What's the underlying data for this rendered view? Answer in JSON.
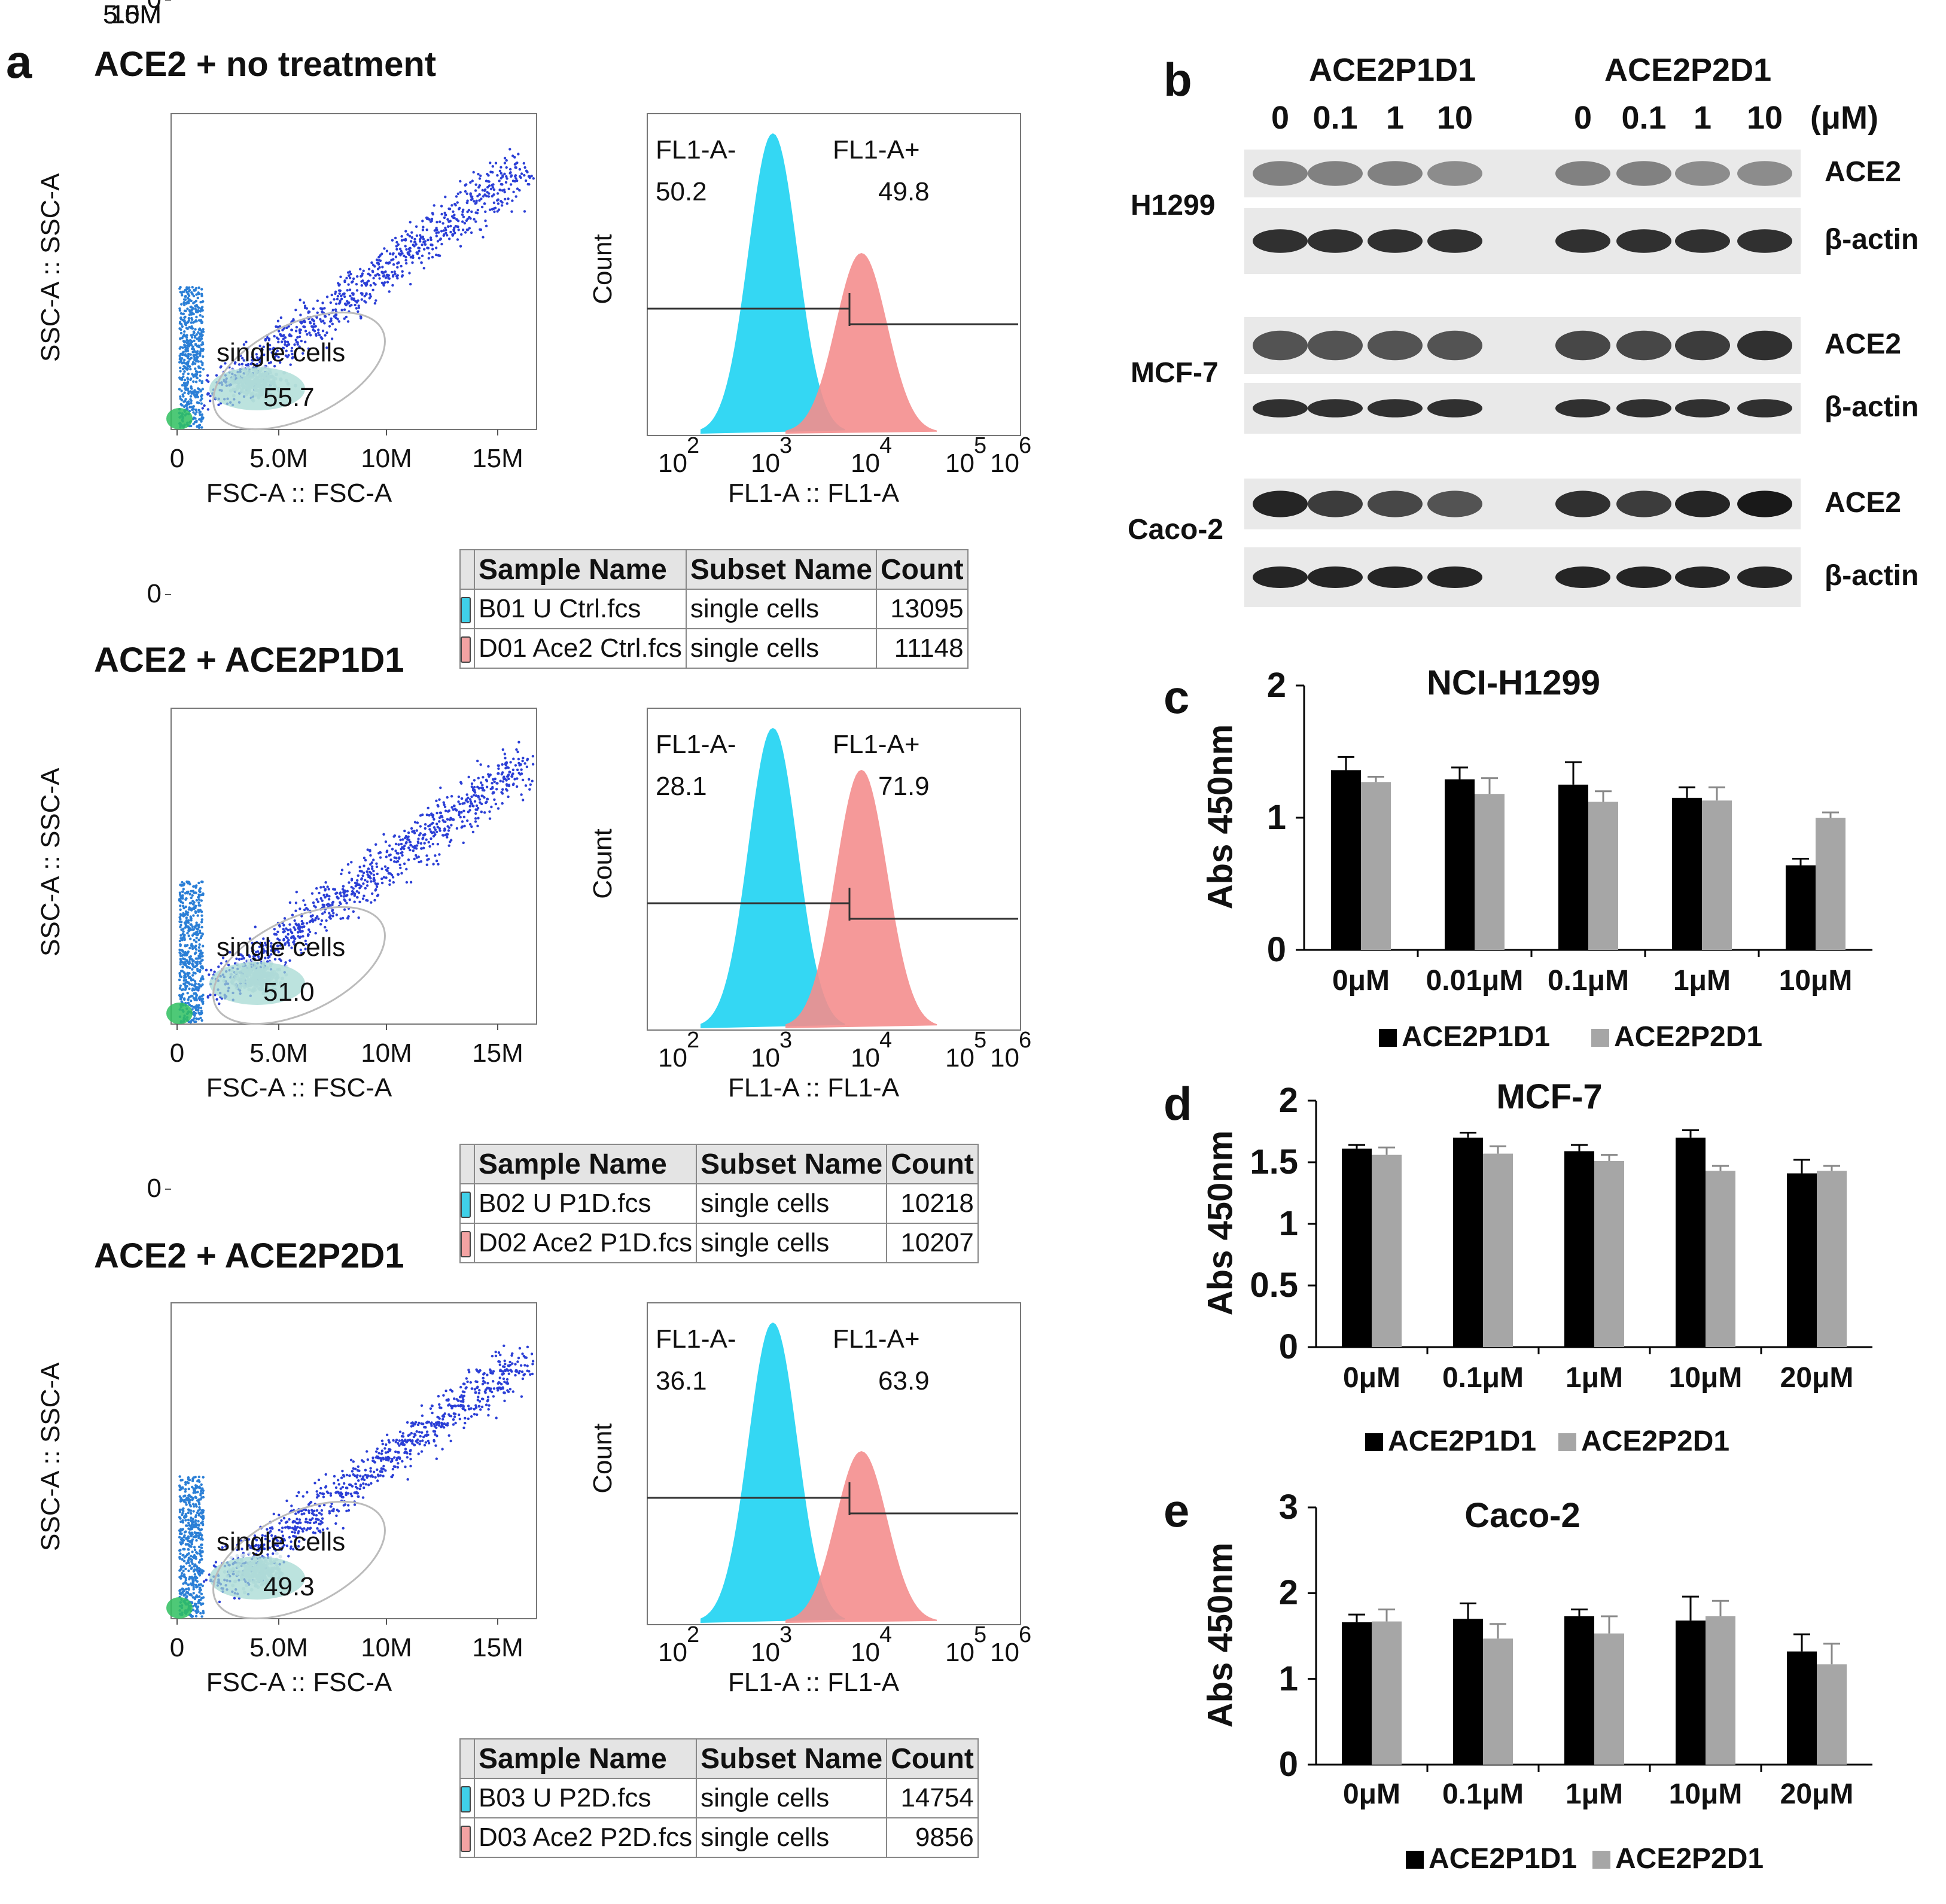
{
  "colors": {
    "histogram_neg": "#1fd3f2",
    "histogram_pos": "#f48e8e",
    "bar_p1d1": "#000000",
    "bar_p2d1": "#a6a6a6"
  },
  "panel_a": {
    "label": "a",
    "flow_axes": {
      "scatter_x_label": "FSC-A :: FSC-A",
      "scatter_y_label": "SSC-A :: SSC-A",
      "scatter_ticks": [
        "0",
        "5.0M",
        "10M",
        "15M"
      ],
      "hist_x_label": "FL1-A :: FL1-A",
      "hist_y_label": "Count",
      "hist_gate_neg": "FL1-A-",
      "hist_gate_pos": "FL1-A+",
      "gate_name": "single cells"
    },
    "legend_headers": [
      "Sample Name",
      "Subset Name",
      "Count"
    ],
    "samples": [
      {
        "title": "ACE2 + no treatment",
        "gate_value": "55.7",
        "neg_pct": "50.2",
        "pos_pct": "49.8",
        "rows": [
          {
            "sample": "B01 U Ctrl.fcs",
            "subset": "single cells",
            "count": "13095"
          },
          {
            "sample": "D01 Ace2 Ctrl.fcs",
            "subset": "single cells",
            "count": "11148"
          }
        ]
      },
      {
        "title": "ACE2 + ACE2P1D1",
        "gate_value": "51.0",
        "neg_pct": "28.1",
        "pos_pct": "71.9",
        "rows": [
          {
            "sample": "B02 U P1D.fcs",
            "subset": "single cells",
            "count": "10218"
          },
          {
            "sample": "D02 Ace2 P1D.fcs",
            "subset": "single cells",
            "count": "10207"
          }
        ]
      },
      {
        "title": "ACE2 + ACE2P2D1",
        "gate_value": "49.3",
        "neg_pct": "36.1",
        "pos_pct": "63.9",
        "rows": [
          {
            "sample": "B03 U P2D.fcs",
            "subset": "single cells",
            "count": "14754"
          },
          {
            "sample": "D03 Ace2 P2D.fcs",
            "subset": "single cells",
            "count": "9856"
          }
        ]
      }
    ]
  },
  "panel_b": {
    "label": "b",
    "groups": [
      "ACE2P1D1",
      "ACE2P2D1"
    ],
    "concentrations": [
      "0",
      "0.1",
      "1",
      "10",
      "0",
      "0.1",
      "1",
      "10"
    ],
    "unit": "(μM)",
    "cell_lines": [
      {
        "name": "H1299",
        "ace2_intensity": [
          0.55,
          0.55,
          0.55,
          0.5,
          0.55,
          0.55,
          0.5,
          0.5
        ],
        "actin_intensity": [
          0.9,
          0.9,
          0.9,
          0.9,
          0.9,
          0.9,
          0.9,
          0.9
        ]
      },
      {
        "name": "MCF-7",
        "ace2_intensity": [
          0.75,
          0.75,
          0.75,
          0.75,
          0.8,
          0.8,
          0.85,
          0.9
        ],
        "actin_intensity": [
          0.9,
          0.9,
          0.9,
          0.9,
          0.9,
          0.9,
          0.9,
          0.9
        ]
      },
      {
        "name": "Caco-2",
        "ace2_intensity": [
          0.95,
          0.85,
          0.8,
          0.75,
          0.9,
          0.85,
          0.95,
          1.0
        ],
        "actin_intensity": [
          0.95,
          0.95,
          0.95,
          0.95,
          0.95,
          0.95,
          0.95,
          0.95
        ]
      }
    ],
    "row_labels": {
      "target": "ACE2",
      "control": "β-actin"
    }
  },
  "chart_data": [
    {
      "panel": "c",
      "type": "bar",
      "title": "NCI-H1299",
      "ylabel": "Abs 450nm",
      "ylim": [
        0,
        2
      ],
      "yticks": [
        "0",
        "1",
        "2"
      ],
      "categories": [
        "0μM",
        "0.01μM",
        "0.1μM",
        "1μM",
        "10μM"
      ],
      "series": [
        {
          "name": "ACE2P1D1",
          "values": [
            1.36,
            1.29,
            1.25,
            1.15,
            0.64
          ],
          "errors": [
            0.1,
            0.09,
            0.17,
            0.08,
            0.05
          ]
        },
        {
          "name": "ACE2P2D1",
          "values": [
            1.27,
            1.18,
            1.12,
            1.13,
            1.0
          ],
          "errors": [
            0.04,
            0.12,
            0.08,
            0.1,
            0.04
          ]
        }
      ]
    },
    {
      "panel": "d",
      "type": "bar",
      "title": "MCF-7",
      "ylabel": "Abs 450nm",
      "ylim": [
        0,
        2
      ],
      "yticks": [
        "0",
        "0.5",
        "1",
        "1.5",
        "2"
      ],
      "categories": [
        "0μM",
        "0.1μM",
        "1μM",
        "10μM",
        "20μM"
      ],
      "series": [
        {
          "name": "ACE2P1D1",
          "values": [
            1.61,
            1.7,
            1.59,
            1.7,
            1.41
          ],
          "errors": [
            0.03,
            0.04,
            0.05,
            0.06,
            0.11
          ]
        },
        {
          "name": "ACE2P2D1",
          "values": [
            1.56,
            1.57,
            1.51,
            1.43,
            1.43
          ],
          "errors": [
            0.06,
            0.06,
            0.05,
            0.04,
            0.04
          ]
        }
      ]
    },
    {
      "panel": "e",
      "type": "bar",
      "title": "Caco-2",
      "ylabel": "Abs 450nm",
      "ylim": [
        0,
        3
      ],
      "yticks": [
        "0",
        "1",
        "2",
        "3"
      ],
      "categories": [
        "0μM",
        "0.1μM",
        "1μM",
        "10μM",
        "20μM"
      ],
      "series": [
        {
          "name": "ACE2P1D1",
          "values": [
            1.66,
            1.7,
            1.73,
            1.68,
            1.32
          ],
          "errors": [
            0.09,
            0.18,
            0.08,
            0.28,
            0.2
          ]
        },
        {
          "name": "ACE2P2D1",
          "values": [
            1.67,
            1.47,
            1.53,
            1.73,
            1.17
          ],
          "errors": [
            0.14,
            0.17,
            0.2,
            0.18,
            0.24
          ]
        }
      ]
    }
  ]
}
